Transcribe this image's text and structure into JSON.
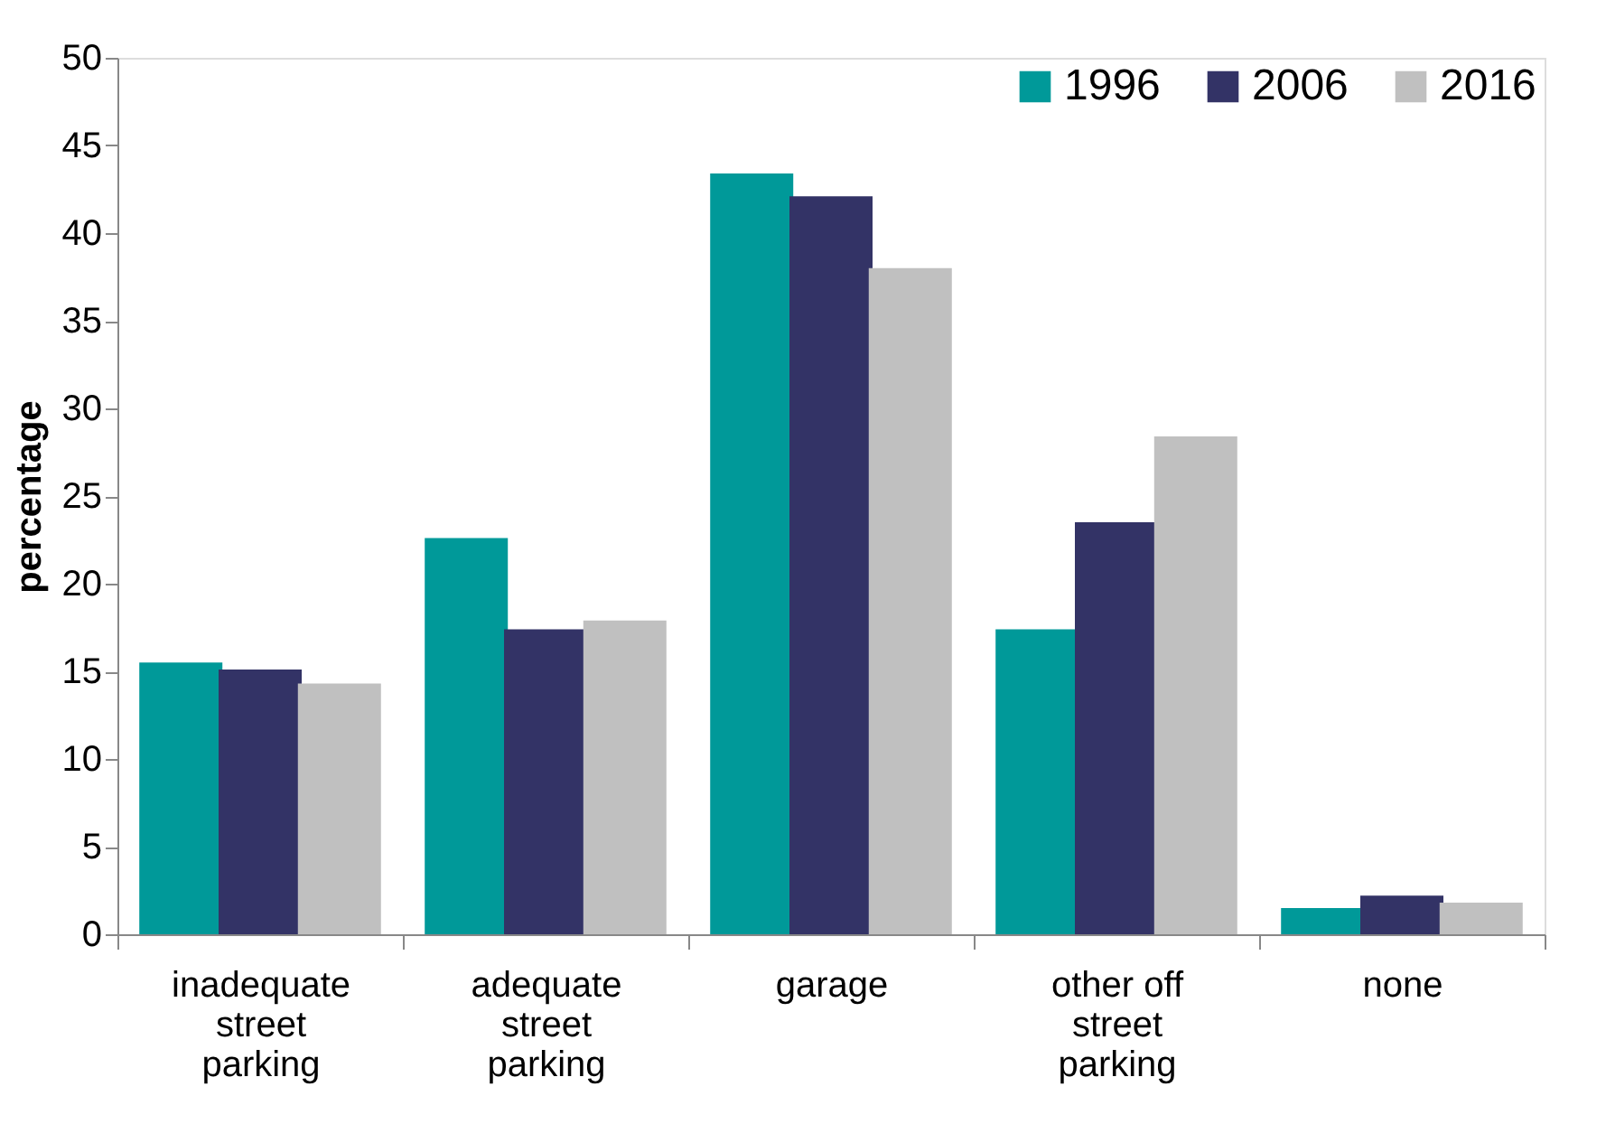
{
  "chart_data": {
    "type": "bar",
    "ylabel": "percentage",
    "categories": [
      "inadequate street parking",
      "adequate street parking",
      "garage",
      "other off street parking",
      "none"
    ],
    "series": [
      {
        "name": "1996",
        "color": "#009999",
        "values": [
          15.5,
          22.6,
          43.4,
          17.4,
          1.5
        ]
      },
      {
        "name": "2006",
        "color": "#333366",
        "values": [
          15.1,
          17.4,
          42.1,
          23.5,
          2.2
        ]
      },
      {
        "name": "2016",
        "color": "#c0c0c0",
        "values": [
          14.3,
          17.9,
          38.0,
          28.4,
          1.8
        ]
      }
    ],
    "ylim": [
      0,
      50
    ],
    "yticks": [
      0,
      5,
      10,
      15,
      20,
      25,
      30,
      35,
      40,
      45,
      50
    ],
    "grid": false,
    "legend": "top right"
  }
}
